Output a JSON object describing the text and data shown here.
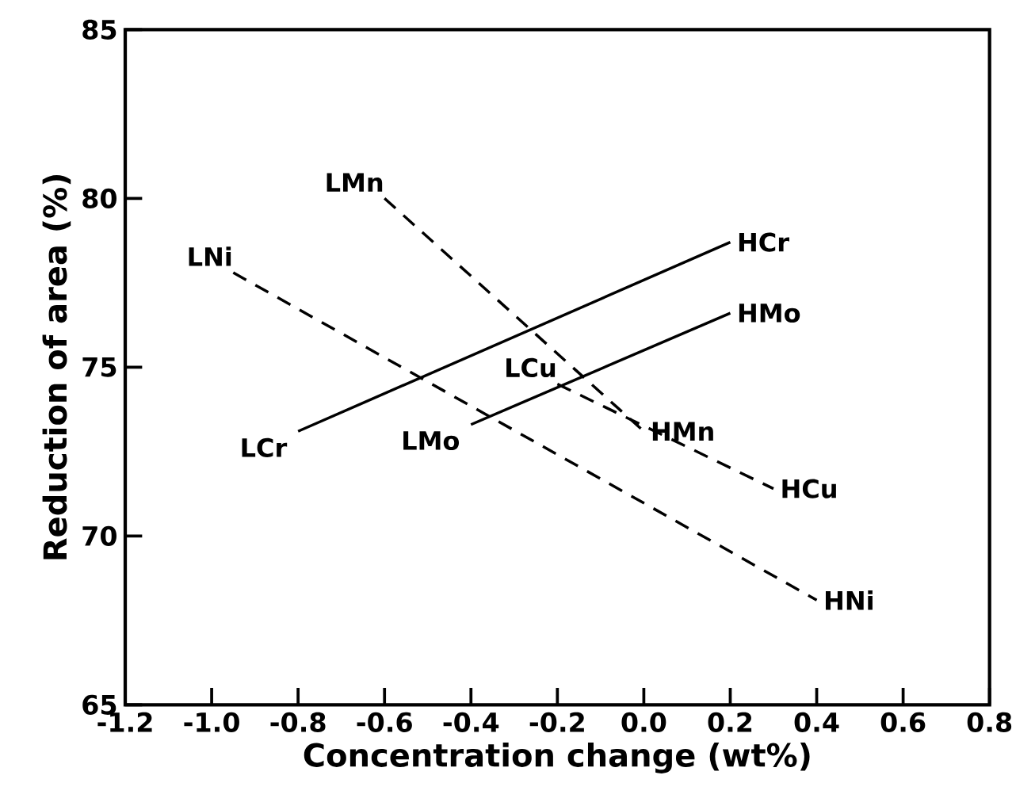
{
  "chart_data": {
    "type": "line",
    "xlabel": "Concentration change (wt%)",
    "ylabel": "Reduction of area (%)",
    "xlim": [
      -1.2,
      0.8
    ],
    "ylim": [
      65,
      85
    ],
    "xticks": [
      {
        "value": -1.2,
        "label": "-1.2"
      },
      {
        "value": -1.0,
        "label": "-1.0"
      },
      {
        "value": -0.8,
        "label": "-0.8"
      },
      {
        "value": -0.6,
        "label": "-0.6"
      },
      {
        "value": -0.4,
        "label": "-0.4"
      },
      {
        "value": -0.2,
        "label": "-0.2"
      },
      {
        "value": 0,
        "label": "0.0"
      },
      {
        "value": 0.2,
        "label": "0.2"
      },
      {
        "value": 0.4,
        "label": "0.4"
      },
      {
        "value": 0.6,
        "label": "0.6"
      },
      {
        "value": 0.8,
        "label": "0.8"
      }
    ],
    "yticks": [
      65,
      70,
      75,
      80,
      85
    ],
    "series": [
      {
        "color": "#000000",
        "line_style": "solid",
        "x": [
          -0.8,
          0.2
        ],
        "values": [
          73.1,
          78.7
        ]
      },
      {
        "color": "#000000",
        "line_style": "solid",
        "x": [
          -0.4,
          0.2
        ],
        "values": [
          73.3,
          76.6
        ]
      },
      {
        "color": "#000000",
        "line_style": "dashed",
        "x": [
          -0.95,
          0.4
        ],
        "values": [
          77.8,
          68.1
        ]
      },
      {
        "color": "#000000",
        "line_style": "dashed",
        "x": [
          -0.6,
          0.0
        ],
        "values": [
          80.0,
          73.1
        ]
      },
      {
        "color": "#000000",
        "line_style": "dashed",
        "x": [
          -0.2,
          0.3
        ],
        "values": [
          74.5,
          71.4
        ]
      }
    ],
    "annotations": [
      {
        "text": "LCr",
        "x": -0.8,
        "y": 73.1
      },
      {
        "text": "HCr",
        "x": 0.2,
        "y": 78.7
      },
      {
        "text": "LMo",
        "x": -0.4,
        "y": 73.3
      },
      {
        "text": "HMo",
        "x": 0.2,
        "y": 76.6
      },
      {
        "text": "LNi",
        "x": -0.95,
        "y": 77.8
      },
      {
        "text": "HNi",
        "x": 0.4,
        "y": 68.1
      },
      {
        "text": "LMn",
        "x": -0.6,
        "y": 80.0
      },
      {
        "text": "HMn",
        "x": 0.0,
        "y": 73.1
      },
      {
        "text": "LCu",
        "x": -0.2,
        "y": 74.5
      },
      {
        "text": "HCu",
        "x": 0.3,
        "y": 71.4
      }
    ]
  }
}
